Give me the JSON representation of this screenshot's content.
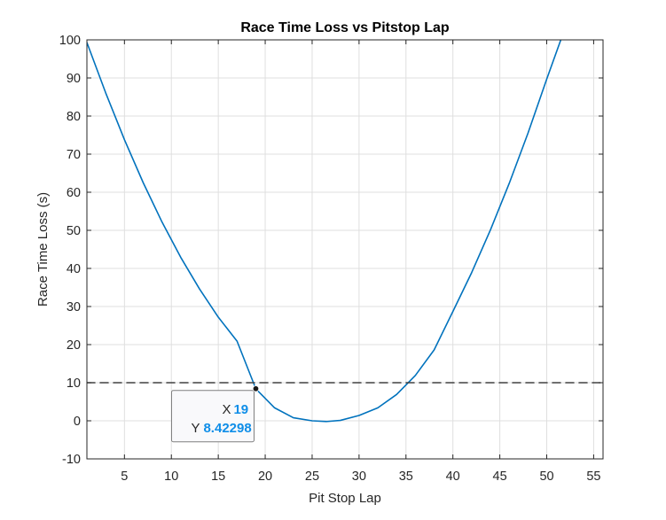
{
  "chart_data": {
    "type": "line",
    "title": "Race Time Loss vs Pitstop Lap",
    "xlabel": "Pit Stop Lap",
    "ylabel": "Race Time Loss (s)",
    "xlim": [
      1,
      56
    ],
    "ylim": [
      -10,
      100
    ],
    "xticks": [
      5,
      10,
      15,
      20,
      25,
      30,
      35,
      40,
      45,
      50,
      55
    ],
    "yticks": [
      -10,
      0,
      10,
      20,
      30,
      40,
      50,
      60,
      70,
      80,
      90,
      100
    ],
    "grid": true,
    "series": [
      {
        "color": "#0072bd",
        "style": "solid",
        "x": [
          1,
          3,
          5,
          7,
          9,
          11,
          13,
          15,
          17,
          19,
          21,
          23,
          25,
          26.5,
          28,
          30,
          32,
          34,
          36,
          38,
          40,
          42,
          44,
          46,
          48,
          50,
          51.5
        ],
        "y": [
          99.3,
          86.1,
          73.8,
          62.5,
          52.2,
          42.9,
          34.6,
          27.2,
          20.9,
          8.4,
          3.4,
          0.8,
          0.0,
          -0.2,
          0.1,
          1.4,
          3.4,
          6.9,
          11.9,
          18.6,
          28.7,
          38.9,
          50.1,
          62.3,
          75.5,
          89.7,
          100.0
        ]
      },
      {
        "color": "#404040",
        "style": "dashed",
        "x": [
          1,
          56
        ],
        "y": [
          10,
          10
        ]
      }
    ],
    "datatip": {
      "x_key": "X",
      "x_value": "19",
      "y_key": "Y",
      "y_value": "8.42298",
      "point_x": 19,
      "point_y": 8.42298
    }
  }
}
